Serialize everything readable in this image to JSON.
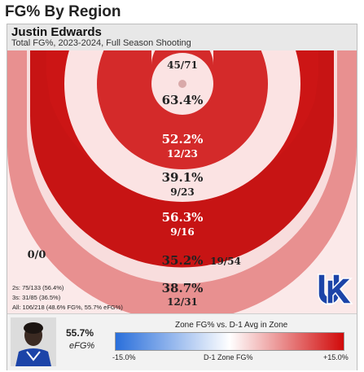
{
  "page_title": "FG% By Region",
  "player_name": "Justin Edwards",
  "subtitle": "Total FG%, 2023-2024, Full Season Shooting",
  "colors": {
    "rim": "#de6f6f",
    "paint_ring": "#d42a2a",
    "mid_ring": "#fbe3e3",
    "long_two": "#cc1515",
    "three_ring": "#f8dddd",
    "three_arc": "#e89090",
    "outer_three": "#fbe9e9",
    "corner_three": "#c71414",
    "logo_blue": "#1c44a8"
  },
  "chart_data": {
    "type": "heatmap",
    "zones": [
      {
        "id": "top",
        "fg": "",
        "made_att": "45/71"
      },
      {
        "id": "rim",
        "fg": "63.4%",
        "made_att": ""
      },
      {
        "id": "short",
        "fg": "52.2%",
        "made_att": "12/23"
      },
      {
        "id": "mid",
        "fg": "39.1%",
        "made_att": "9/23"
      },
      {
        "id": "long_two",
        "fg": "56.3%",
        "made_att": "9/16"
      },
      {
        "id": "three",
        "fg": "35.2%",
        "made_att": "19/54"
      },
      {
        "id": "deep_three",
        "fg": "38.7%",
        "made_att": "12/31"
      },
      {
        "id": "corner",
        "fg": "0/0",
        "made_att": ""
      }
    ],
    "totals": {
      "twos": "2s: 75/133 (56.4%)",
      "threes": "3s: 31/85 (36.5%)",
      "all": "All: 106/218 (48.6% FG%, 55.7% eFG%)"
    },
    "efg": "55.7%",
    "efg_label": "eFG%",
    "legend": {
      "title": "Zone FG% vs. D-1 Avg in Zone",
      "min": "-15.0%",
      "mid": "D-1 Zone FG%",
      "max": "+15.0%"
    }
  }
}
